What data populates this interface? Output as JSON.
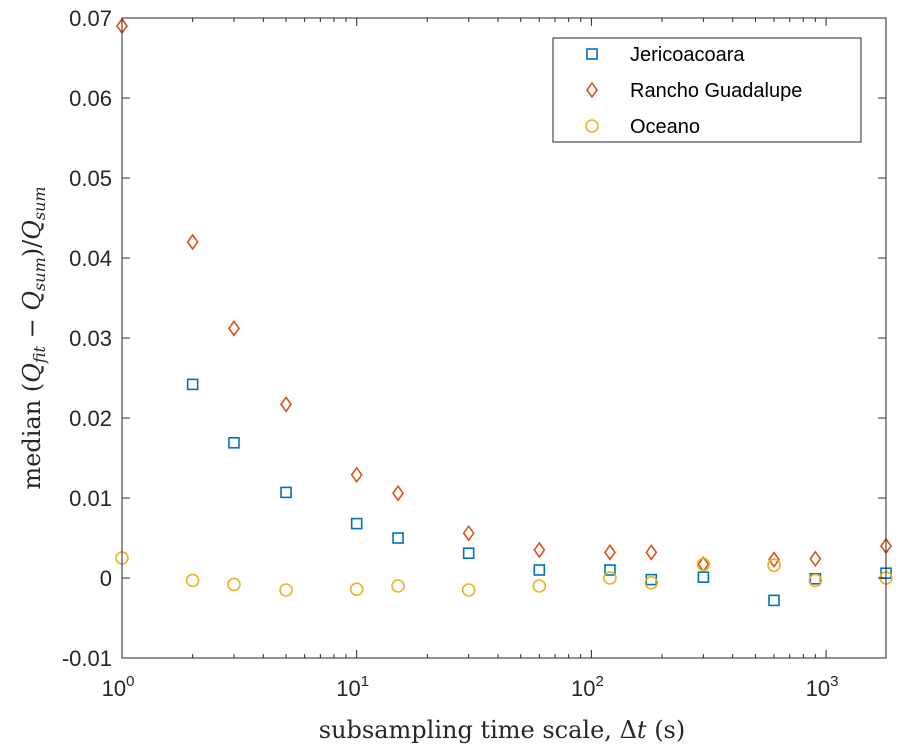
{
  "chart_data": {
    "type": "scatter",
    "xscale": "log",
    "xlim": [
      1,
      1800
    ],
    "ylim": [
      -0.01,
      0.07
    ],
    "xticks": [
      {
        "value": 1,
        "base": "10",
        "exp": "0"
      },
      {
        "value": 10,
        "base": "10",
        "exp": "1"
      },
      {
        "value": 100,
        "base": "10",
        "exp": "2"
      },
      {
        "value": 1000,
        "base": "10",
        "exp": "3"
      }
    ],
    "yticks": [
      {
        "value": -0.01,
        "label": "-0.01"
      },
      {
        "value": 0,
        "label": "0"
      },
      {
        "value": 0.01,
        "label": "0.01"
      },
      {
        "value": 0.02,
        "label": "0.02"
      },
      {
        "value": 0.03,
        "label": "0.03"
      },
      {
        "value": 0.04,
        "label": "0.04"
      },
      {
        "value": 0.05,
        "label": "0.05"
      },
      {
        "value": 0.06,
        "label": "0.06"
      },
      {
        "value": 0.07,
        "label": "0.07"
      }
    ],
    "xlabel": {
      "pre": "subsampling time scale, ",
      "sym": "Δ",
      "var": "t",
      "post": " (s)"
    },
    "ylabel": {
      "pre": "median ",
      "open": "(",
      "q1": "Q",
      "sub1": "fit",
      "minus": " − ",
      "q2": "Q",
      "sub2": "sum",
      "close": ")/",
      "q3": "Q",
      "sub3": "sum"
    },
    "legend_position": "top-right",
    "grid": false,
    "series": [
      {
        "name": "Jericoacoara",
        "marker": "square",
        "color": "#0072BD",
        "points": [
          [
            2,
            0.0242
          ],
          [
            3,
            0.0169
          ],
          [
            5,
            0.0107
          ],
          [
            10,
            0.0068
          ],
          [
            15,
            0.005
          ],
          [
            30,
            0.0031
          ],
          [
            60,
            0.001
          ],
          [
            120,
            0.001
          ],
          [
            180,
            -0.0002
          ],
          [
            300,
            0.0001
          ],
          [
            600,
            -0.0028
          ],
          [
            900,
            -0.0001
          ],
          [
            1800,
            0.0006
          ]
        ]
      },
      {
        "name": "Rancho Guadalupe",
        "marker": "diamond",
        "color": "#D95319",
        "points": [
          [
            1,
            0.069
          ],
          [
            2,
            0.042
          ],
          [
            3,
            0.0312
          ],
          [
            5,
            0.0217
          ],
          [
            10,
            0.0129
          ],
          [
            15,
            0.0106
          ],
          [
            30,
            0.0056
          ],
          [
            60,
            0.0035
          ],
          [
            120,
            0.0032
          ],
          [
            180,
            0.0032
          ],
          [
            300,
            0.0017
          ],
          [
            600,
            0.0023
          ],
          [
            900,
            0.0024
          ],
          [
            1800,
            0.004
          ]
        ]
      },
      {
        "name": "Oceano",
        "marker": "circle",
        "color": "#EDB120",
        "points": [
          [
            1,
            0.0025
          ],
          [
            2,
            -0.0003
          ],
          [
            3,
            -0.0008
          ],
          [
            5,
            -0.0015
          ],
          [
            10,
            -0.0014
          ],
          [
            15,
            -0.001
          ],
          [
            30,
            -0.0015
          ],
          [
            60,
            -0.001
          ],
          [
            120,
            0.0
          ],
          [
            180,
            -0.0006
          ],
          [
            300,
            0.0017
          ],
          [
            600,
            0.0016
          ],
          [
            900,
            -0.0003
          ],
          [
            1800,
            0.0
          ]
        ]
      }
    ]
  }
}
